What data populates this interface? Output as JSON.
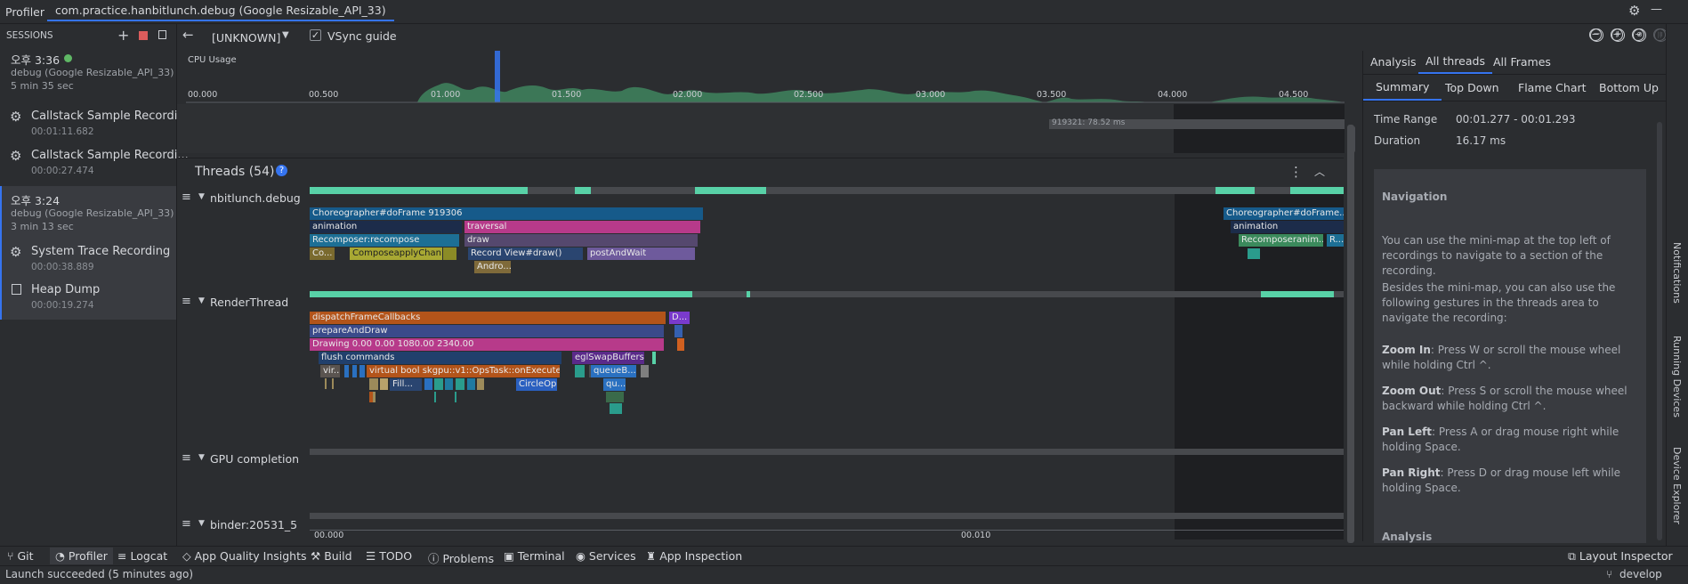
{
  "titlebar": {
    "app": "Profiler",
    "tab": "com.practice.hanbitlunch.debug (Google Resizable_API_33)"
  },
  "sessions": {
    "header": "SESSIONS",
    "groups": [
      {
        "time": "오후 3:36",
        "device": "debug (Google Resizable_API_33)",
        "duration": "5 min 35 sec",
        "live": true
      },
      {
        "time": "오후 3:24",
        "device": "debug (Google Resizable_API_33)",
        "duration": "3 min 13 sec",
        "live": false
      }
    ],
    "items": [
      {
        "title": "Callstack Sample Recordi...",
        "time": "00:01:11.682"
      },
      {
        "title": "Callstack Sample Recordi...",
        "time": "00:00:27.474"
      },
      {
        "title": "System Trace Recording",
        "time": "00:00:38.889"
      },
      {
        "title": "Heap Dump",
        "time": "00:00:19.274"
      }
    ]
  },
  "toolbar": {
    "process": "[UNKNOWN]",
    "vsync_label": "VSync guide"
  },
  "cpu": {
    "label": "CPU Usage",
    "ticks": [
      "00.000",
      "00.500",
      "01.000",
      "01.500",
      "02.000",
      "02.500",
      "03.000",
      "03.500",
      "04.000",
      "04.500"
    ],
    "frame_label": "919321: 78.52 ms"
  },
  "threads": {
    "title": "Threads (54)",
    "list": [
      {
        "name": "nbitlunch.debug"
      },
      {
        "name": "RenderThread"
      },
      {
        "name": "GPU completion"
      },
      {
        "name": "binder:20531_5"
      }
    ],
    "slices_main": [
      "Choreographer#doFrame 919306",
      "animation",
      "Recomposer:recompose",
      "Co...",
      "ComposeapplyChan...",
      "traversal",
      "draw",
      "Record View#draw()",
      "postAndWait",
      "Andro...",
      "Choreographer#doFrame...",
      "animation",
      "Recomposeranim...",
      "R..."
    ],
    "slices_render": [
      "dispatchFrameCallbacks",
      "D...",
      "prepareAndDraw",
      "Drawing   0.00   0.00  1080.00  2340.00",
      "flush commands",
      "eglSwapBuffers...",
      "vir...",
      "virtual bool skgpu::v1::OpsTask::onExecute(Gr...",
      "Fill...",
      "CircleOp",
      "queueB...",
      "qu..."
    ],
    "bottom_ticks": [
      "00.000",
      "00.010"
    ]
  },
  "right_panel": {
    "tabs_top": [
      "Analysis",
      "All threads",
      "All Frames"
    ],
    "tabs_sub": [
      "Summary",
      "Top Down",
      "Flame Chart",
      "Bottom Up"
    ],
    "time_range_label": "Time Range",
    "time_range_value": "00:01.277 - 00:01.293",
    "duration_label": "Duration",
    "duration_value": "16.17 ms",
    "help": {
      "title": "Navigation",
      "p1": "You can use the mini-map at the top left of recordings to navigate to a section of the recording.",
      "p2": "Besides the mini-map, you can also use the following gestures in the threads area to navigate the recording:",
      "zoom_in_label": "Zoom In",
      "zoom_in_text": ": Press W or scroll the mouse wheel while holding Ctrl ^.",
      "zoom_out_label": "Zoom Out",
      "zoom_out_text": ": Press S or scroll the mouse wheel backward while holding Ctrl ^.",
      "pan_left_label": "Pan Left",
      "pan_left_text": ": Press A or drag mouse right while holding Space.",
      "pan_right_label": "Pan Right",
      "pan_right_text": ": Press D or drag mouse left while holding Space.",
      "analysis_label": "Analysis"
    }
  },
  "bottom_tools": [
    "Git",
    "Profiler",
    "Logcat",
    "App Quality Insights",
    "Build",
    "TODO",
    "Problems",
    "Terminal",
    "Services",
    "App Inspection"
  ],
  "layout_inspector": "Layout Inspector",
  "status": {
    "message": "Launch succeeded (5 minutes ago)",
    "branch": "develop"
  },
  "right_strip": [
    "Notifications",
    "Running Devices",
    "Device Explorer"
  ]
}
